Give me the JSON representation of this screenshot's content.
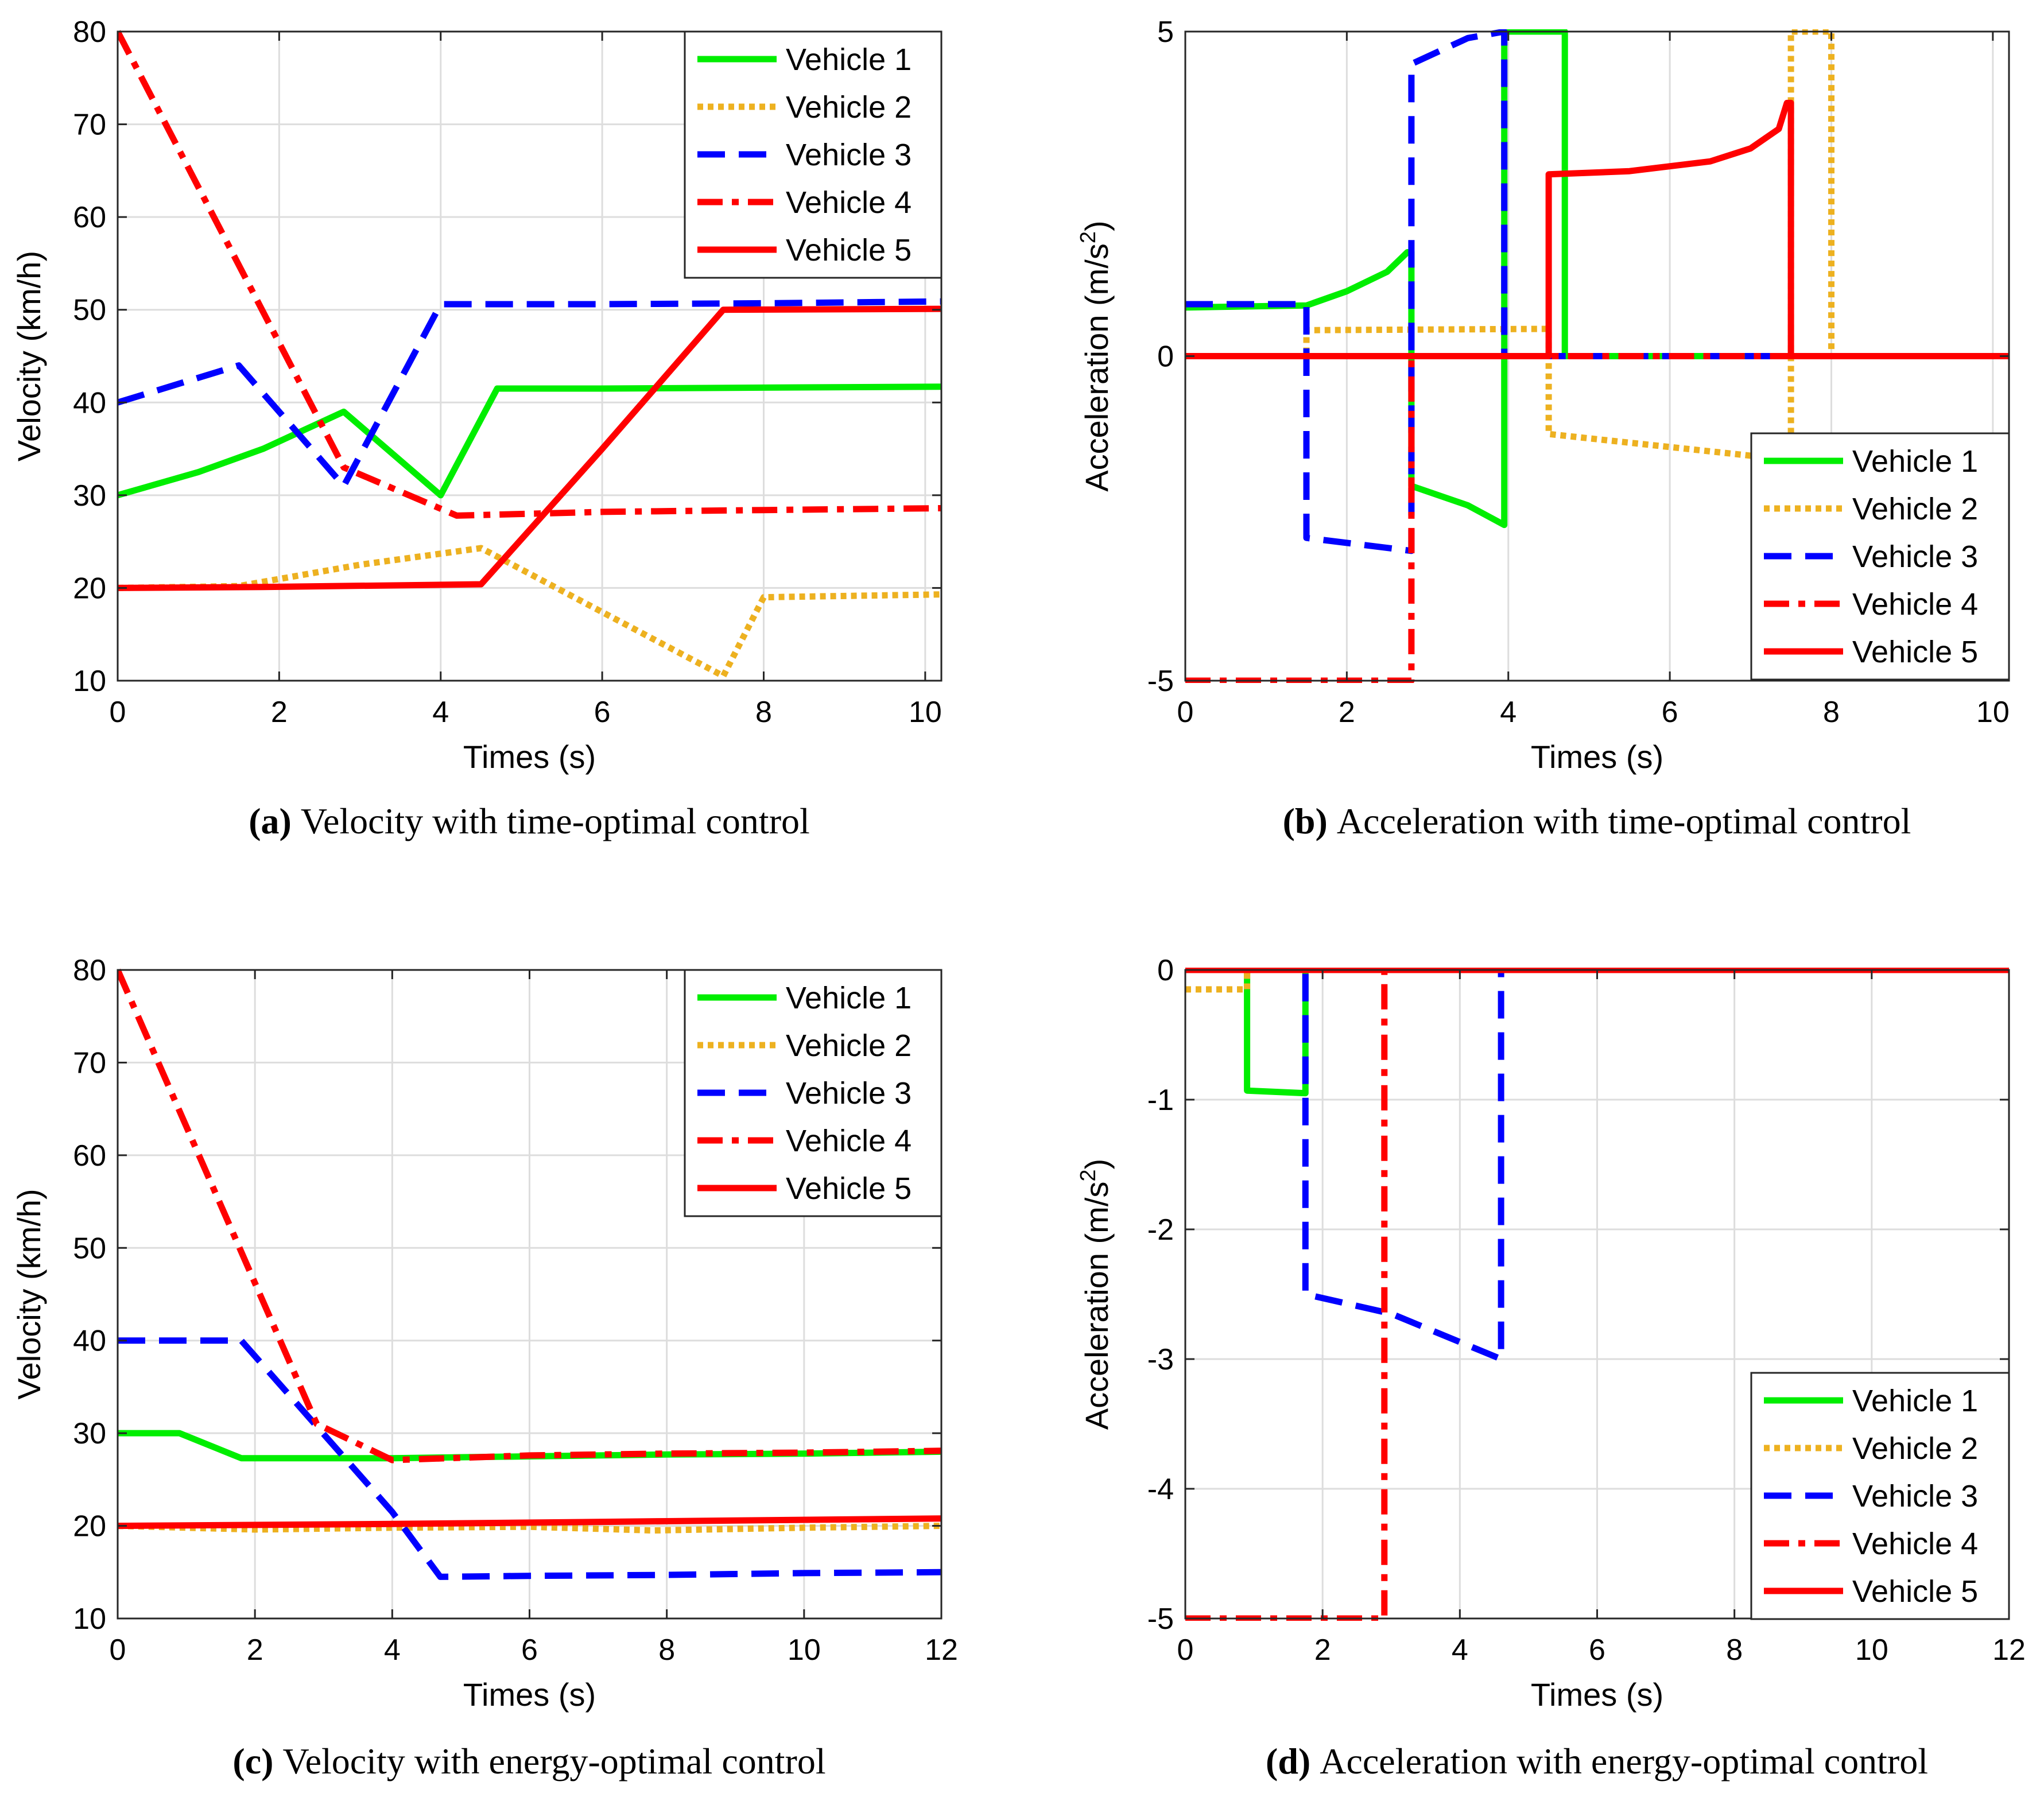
{
  "colors": {
    "vehicle_1": "#00ee00",
    "vehicle_2": "#edb120",
    "vehicle_3": "#0000ff",
    "vehicle_4": "#ff0000",
    "vehicle_5": "#ff0000",
    "grid": "#dddddd",
    "axes": "#262626"
  },
  "chart_data": [
    {
      "type": "line",
      "label": "(a)",
      "caption": "Velocity with time-optimal control",
      "xlabel": "Times (s)",
      "ylabel": "Velocity (km/h)",
      "xlim": [
        0,
        10.2
      ],
      "ylim": [
        10,
        80
      ],
      "xticks": [
        0,
        2,
        4,
        6,
        8,
        10
      ],
      "yticks": [
        10,
        20,
        30,
        40,
        50,
        60,
        70,
        80
      ],
      "grid": true,
      "legend_position": "top-right",
      "series": [
        {
          "name": "Vehicle 1",
          "style": "solid",
          "points": [
            [
              0,
              30
            ],
            [
              1,
              32.5
            ],
            [
              1.8,
              35
            ],
            [
              2.8,
              39
            ],
            [
              4,
              30
            ],
            [
              4.7,
              41.5
            ],
            [
              6,
              41.5
            ],
            [
              8,
              41.6
            ],
            [
              10.2,
              41.7
            ]
          ]
        },
        {
          "name": "Vehicle 2",
          "style": "dotted",
          "points": [
            [
              0,
              20
            ],
            [
              1.5,
              20.2
            ],
            [
              3,
              22.5
            ],
            [
              4.5,
              24.3
            ],
            [
              7.5,
              10.5
            ],
            [
              8,
              19
            ],
            [
              10.2,
              19.3
            ]
          ]
        },
        {
          "name": "Vehicle 3",
          "style": "dashed",
          "points": [
            [
              0,
              40
            ],
            [
              1.5,
              44
            ],
            [
              2.8,
              31
            ],
            [
              4,
              50.6
            ],
            [
              6,
              50.6
            ],
            [
              8,
              50.7
            ],
            [
              10.2,
              50.9
            ]
          ]
        },
        {
          "name": "Vehicle 4",
          "style": "dashdot",
          "points": [
            [
              0,
              80
            ],
            [
              2.8,
              33
            ],
            [
              4.2,
              27.8
            ],
            [
              6,
              28.2
            ],
            [
              8,
              28.4
            ],
            [
              10.2,
              28.6
            ]
          ]
        },
        {
          "name": "Vehicle 5",
          "style": "solid",
          "points": [
            [
              0,
              20
            ],
            [
              1.8,
              20.1
            ],
            [
              4.5,
              20.4
            ],
            [
              6,
              35
            ],
            [
              7.5,
              50
            ],
            [
              10.2,
              50.1
            ]
          ]
        }
      ]
    },
    {
      "type": "line",
      "label": "(b)",
      "caption": "Acceleration with time-optimal control",
      "xlabel": "Times (s)",
      "ylabel": "Acceleration (m/s",
      "ylabel_sup": "2",
      "ylabel_end": ")",
      "xlim": [
        0,
        10.2
      ],
      "ylim": [
        -5,
        5
      ],
      "xticks": [
        0,
        2,
        4,
        6,
        8,
        10
      ],
      "yticks": [
        -5,
        0,
        5
      ],
      "grid": true,
      "legend_position": "bottom-right",
      "series": [
        {
          "name": "Vehicle 1",
          "style": "solid",
          "points": [
            [
              0,
              0.75
            ],
            [
              1.5,
              0.78
            ],
            [
              2,
              1
            ],
            [
              2.5,
              1.3
            ],
            [
              2.75,
              1.6
            ],
            [
              2.8,
              1.6
            ],
            [
              2.8,
              -2
            ],
            [
              3.5,
              -2.3
            ],
            [
              3.95,
              -2.6
            ],
            [
              3.95,
              5
            ],
            [
              4.7,
              5
            ],
            [
              4.7,
              0
            ],
            [
              10.2,
              0
            ]
          ]
        },
        {
          "name": "Vehicle 2",
          "style": "dotted",
          "points": [
            [
              0,
              0
            ],
            [
              1.5,
              0
            ],
            [
              1.5,
              0.4
            ],
            [
              4.5,
              0.42
            ],
            [
              4.5,
              -1.2
            ],
            [
              7.5,
              -1.6
            ],
            [
              7.5,
              5
            ],
            [
              8,
              5
            ],
            [
              8,
              0
            ],
            [
              10.2,
              0
            ]
          ]
        },
        {
          "name": "Vehicle 3",
          "style": "dashed",
          "points": [
            [
              0,
              0.8
            ],
            [
              1.5,
              0.8
            ],
            [
              1.5,
              -2.8
            ],
            [
              2.8,
              -3
            ],
            [
              2.8,
              4.5
            ],
            [
              3.5,
              4.9
            ],
            [
              3.95,
              5
            ],
            [
              3.95,
              0
            ],
            [
              10.2,
              0
            ]
          ]
        },
        {
          "name": "Vehicle 4",
          "style": "dashdot",
          "points": [
            [
              0,
              -5
            ],
            [
              2.8,
              -5
            ],
            [
              2.8,
              0
            ],
            [
              10.2,
              0
            ]
          ]
        },
        {
          "name": "Vehicle 5",
          "style": "solid",
          "points": [
            [
              0,
              0
            ],
            [
              4.5,
              0
            ],
            [
              4.5,
              2.8
            ],
            [
              5.5,
              2.85
            ],
            [
              6.5,
              3
            ],
            [
              7,
              3.2
            ],
            [
              7.35,
              3.5
            ],
            [
              7.45,
              3.9
            ],
            [
              7.5,
              3.9
            ],
            [
              7.5,
              0
            ],
            [
              10.2,
              0
            ]
          ]
        }
      ]
    },
    {
      "type": "line",
      "label": "(c)",
      "caption": "Velocity with energy-optimal control",
      "xlabel": "Times (s)",
      "ylabel": "Velocity (km/h)",
      "xlim": [
        0,
        12
      ],
      "ylim": [
        10,
        80
      ],
      "xticks": [
        0,
        2,
        4,
        6,
        8,
        10,
        12
      ],
      "yticks": [
        10,
        20,
        30,
        40,
        50,
        60,
        70,
        80
      ],
      "grid": true,
      "legend_position": "top-right",
      "series": [
        {
          "name": "Vehicle 1",
          "style": "solid",
          "points": [
            [
              0,
              30
            ],
            [
              0.9,
              30
            ],
            [
              1.8,
              27.3
            ],
            [
              4,
              27.3
            ],
            [
              6,
              27.5
            ],
            [
              8,
              27.7
            ],
            [
              10,
              27.8
            ],
            [
              12,
              28
            ]
          ]
        },
        {
          "name": "Vehicle 2",
          "style": "dotted",
          "points": [
            [
              0,
              20
            ],
            [
              2,
              19.6
            ],
            [
              4,
              19.8
            ],
            [
              6,
              19.9
            ],
            [
              7.8,
              19.5
            ],
            [
              10,
              19.8
            ],
            [
              12,
              20
            ]
          ]
        },
        {
          "name": "Vehicle 3",
          "style": "dashed",
          "points": [
            [
              0,
              40
            ],
            [
              1.8,
              40
            ],
            [
              4,
              21.5
            ],
            [
              4.7,
              14.5
            ],
            [
              6,
              14.6
            ],
            [
              8,
              14.7
            ],
            [
              10,
              14.9
            ],
            [
              12,
              15
            ]
          ]
        },
        {
          "name": "Vehicle 4",
          "style": "dashdot",
          "points": [
            [
              0,
              80
            ],
            [
              2.9,
              31
            ],
            [
              4,
              27.1
            ],
            [
              6,
              27.6
            ],
            [
              8,
              27.8
            ],
            [
              10,
              27.9
            ],
            [
              12,
              28.1
            ]
          ]
        },
        {
          "name": "Vehicle 5",
          "style": "solid",
          "points": [
            [
              0,
              20
            ],
            [
              4,
              20.2
            ],
            [
              8,
              20.5
            ],
            [
              12,
              20.8
            ]
          ]
        }
      ]
    },
    {
      "type": "line",
      "label": "(d)",
      "caption": "Acceleration with energy-optimal control",
      "xlabel": "Times (s)",
      "ylabel": "Acceleration (m/s",
      "ylabel_sup": "2",
      "ylabel_end": ")",
      "xlim": [
        0,
        12
      ],
      "ylim": [
        -5,
        0
      ],
      "xticks": [
        0,
        2,
        4,
        6,
        8,
        10,
        12
      ],
      "yticks": [
        -5,
        -4,
        -3,
        -2,
        -1,
        0
      ],
      "grid": true,
      "legend_position": "bottom-right",
      "series": [
        {
          "name": "Vehicle 1",
          "style": "solid",
          "points": [
            [
              0,
              0
            ],
            [
              0.9,
              0
            ],
            [
              0.9,
              -0.93
            ],
            [
              1.75,
              -0.95
            ],
            [
              1.75,
              0
            ],
            [
              12,
              0
            ]
          ]
        },
        {
          "name": "Vehicle 2",
          "style": "dotted",
          "points": [
            [
              0,
              -0.15
            ],
            [
              0.9,
              -0.15
            ],
            [
              0.9,
              0
            ],
            [
              12,
              0
            ]
          ]
        },
        {
          "name": "Vehicle 3",
          "style": "dashed",
          "points": [
            [
              0,
              0
            ],
            [
              1.75,
              0
            ],
            [
              1.75,
              -2.5
            ],
            [
              3,
              -2.65
            ],
            [
              4.6,
              -3
            ],
            [
              4.6,
              0
            ],
            [
              12,
              0
            ]
          ]
        },
        {
          "name": "Vehicle 4",
          "style": "dashdot",
          "points": [
            [
              0,
              -5
            ],
            [
              2.9,
              -5
            ],
            [
              2.9,
              0
            ],
            [
              12,
              0
            ]
          ]
        },
        {
          "name": "Vehicle 5",
          "style": "solid",
          "points": [
            [
              0,
              0
            ],
            [
              12,
              0
            ]
          ]
        }
      ]
    }
  ]
}
